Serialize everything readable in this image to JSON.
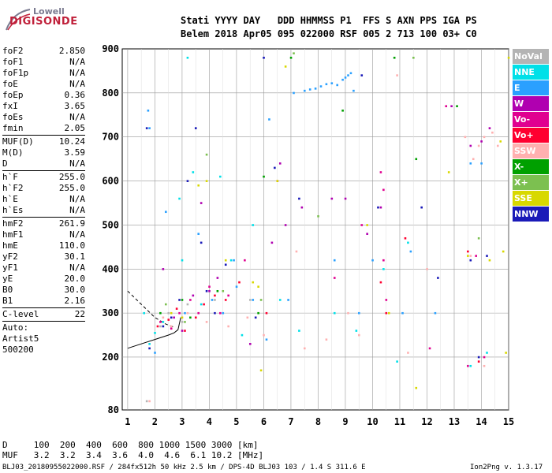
{
  "logo": {
    "line1": "Lowell",
    "line2": "DIGISONDE"
  },
  "header": {
    "row1": "Stati YYYY DAY   DDD HHMMSS P1  FFS S AXN PPS IGA PS",
    "row2": "Belem 2018 Apr05 095 022000 RSF 005 2 713 100 03+ C0"
  },
  "params": [
    {
      "k": "foF2",
      "v": "2.850"
    },
    {
      "k": "foF1",
      "v": "N/A"
    },
    {
      "k": "foF1p",
      "v": "N/A"
    },
    {
      "k": "foE",
      "v": "N/A"
    },
    {
      "k": "foEp",
      "v": "0.36"
    },
    {
      "k": "fxI",
      "v": "3.65"
    },
    {
      "k": "foEs",
      "v": "N/A"
    },
    {
      "k": "fmin",
      "v": "2.05"
    },
    {
      "sep": true
    },
    {
      "k": "MUF(D)",
      "v": "10.24"
    },
    {
      "k": "M(D)",
      "v": "3.59"
    },
    {
      "k": "D",
      "v": "N/A"
    },
    {
      "sep": true
    },
    {
      "k": "h`F",
      "v": "255.0"
    },
    {
      "k": "h`F2",
      "v": "255.0"
    },
    {
      "k": "h`E",
      "v": "N/A"
    },
    {
      "k": "h`Es",
      "v": "N/A"
    },
    {
      "sep": true
    },
    {
      "k": "hmF2",
      "v": "261.9"
    },
    {
      "k": "hmF1",
      "v": "N/A"
    },
    {
      "k": "hmE",
      "v": "110.0"
    },
    {
      "k": "yF2",
      "v": "30.1"
    },
    {
      "k": "yF1",
      "v": "N/A"
    },
    {
      "k": "yE",
      "v": "20.0"
    },
    {
      "k": "B0",
      "v": "30.0"
    },
    {
      "k": "B1",
      "v": "2.16"
    },
    {
      "sep": true
    },
    {
      "k": "C-level",
      "v": "22"
    },
    {
      "sep": true
    },
    {
      "k": "Auto:",
      "v": ""
    },
    {
      "k": "Artist5",
      "v": ""
    },
    {
      "k": "500200",
      "v": ""
    }
  ],
  "legend": [
    {
      "label": "NoVal",
      "color": "#b4b4b4"
    },
    {
      "label": "NNE",
      "color": "#00e0e8"
    },
    {
      "label": "E",
      "color": "#2aa0ff"
    },
    {
      "label": "W",
      "color": "#b000b0"
    },
    {
      "label": "Vo-",
      "color": "#e00090"
    },
    {
      "label": "Vo+",
      "color": "#ff0030"
    },
    {
      "label": "SSW",
      "color": "#ffb0b0"
    },
    {
      "label": "X-",
      "color": "#00a000"
    },
    {
      "label": "X+",
      "color": "#7cc050"
    },
    {
      "label": "SSE",
      "color": "#d8d800"
    },
    {
      "label": "NNW",
      "color": "#1a1ab8"
    }
  ],
  "footer": {
    "row1": "D     100  200  400  600  800 1000 1500 3000 [km]",
    "row2": "MUF   3.2  3.2  3.4  3.6  4.0  4.6  6.1 10.2 [MHz]",
    "row3": "BLJ03_20180955022000.RSF / 284fx512h 50 kHz 2.5 km / DPS-4D BLJ03 103 / 1.4 S 311.6 E",
    "row4": "Ion2Png v. 1.3.17"
  },
  "chart_data": {
    "type": "scatter",
    "xlabel": "",
    "ylabel": "",
    "xlim": [
      0.8,
      15
    ],
    "ylim": [
      80,
      900
    ],
    "xticks": [
      1,
      2,
      3,
      4,
      5,
      6,
      7,
      8,
      9,
      10,
      11,
      12,
      13,
      14,
      15
    ],
    "yticks": [
      80,
      200,
      300,
      400,
      500,
      600,
      700,
      800,
      900
    ],
    "grid": true,
    "series": [
      {
        "name": "NoVal",
        "color": "#b4b4b4",
        "points": [
          [
            2.2,
            270
          ],
          [
            2.5,
            300
          ],
          [
            3.0,
            280
          ],
          [
            3.2,
            320
          ],
          [
            4.2,
            330
          ],
          [
            1.7,
            100
          ],
          [
            5.5,
            330
          ]
        ]
      },
      {
        "name": "NNE",
        "color": "#00e0e8",
        "points": [
          [
            1.6,
            300
          ],
          [
            1.8,
            230
          ],
          [
            2.0,
            255
          ],
          [
            2.3,
            280
          ],
          [
            2.9,
            560
          ],
          [
            3.0,
            420
          ],
          [
            3.2,
            880
          ],
          [
            3.4,
            620
          ],
          [
            3.7,
            320
          ],
          [
            4.4,
            610
          ],
          [
            4.8,
            420
          ],
          [
            5.2,
            250
          ],
          [
            5.6,
            500
          ],
          [
            6.6,
            330
          ],
          [
            7.3,
            260
          ],
          [
            8.6,
            300
          ],
          [
            9.4,
            260
          ],
          [
            10.4,
            400
          ],
          [
            10.9,
            190
          ],
          [
            11.3,
            460
          ],
          [
            13.6,
            180
          ],
          [
            14.2,
            210
          ]
        ]
      },
      {
        "name": "E",
        "color": "#2aa0ff",
        "points": [
          [
            1.75,
            760
          ],
          [
            1.8,
            720
          ],
          [
            2.0,
            210
          ],
          [
            2.4,
            530
          ],
          [
            3.1,
            300
          ],
          [
            3.6,
            480
          ],
          [
            4.1,
            330
          ],
          [
            4.5,
            300
          ],
          [
            4.9,
            420
          ],
          [
            5.0,
            360
          ],
          [
            5.6,
            330
          ],
          [
            6.1,
            240
          ],
          [
            6.2,
            740
          ],
          [
            6.9,
            330
          ],
          [
            7.1,
            800
          ],
          [
            7.5,
            805
          ],
          [
            7.7,
            808
          ],
          [
            7.9,
            810
          ],
          [
            8.1,
            815
          ],
          [
            8.3,
            820
          ],
          [
            8.5,
            822
          ],
          [
            8.7,
            818
          ],
          [
            8.9,
            830
          ],
          [
            9.0,
            835
          ],
          [
            9.1,
            840
          ],
          [
            9.2,
            845
          ],
          [
            9.3,
            805
          ],
          [
            8.6,
            420
          ],
          [
            9.5,
            300
          ],
          [
            10.0,
            420
          ],
          [
            11.1,
            300
          ],
          [
            11.4,
            440
          ],
          [
            12.3,
            300
          ],
          [
            13.6,
            640
          ],
          [
            14.0,
            640
          ]
        ]
      },
      {
        "name": "W",
        "color": "#b000b0",
        "points": [
          [
            2.3,
            400
          ],
          [
            2.7,
            290
          ],
          [
            3.0,
            260
          ],
          [
            3.4,
            340
          ],
          [
            3.7,
            550
          ],
          [
            4.0,
            350
          ],
          [
            4.3,
            380
          ],
          [
            5.5,
            230
          ],
          [
            6.3,
            460
          ],
          [
            6.6,
            640
          ],
          [
            6.8,
            500
          ],
          [
            7.4,
            540
          ],
          [
            8.5,
            560
          ],
          [
            9.0,
            560
          ],
          [
            9.8,
            480
          ],
          [
            10.3,
            540
          ],
          [
            12.9,
            770
          ],
          [
            13.6,
            680
          ],
          [
            14.0,
            690
          ],
          [
            14.3,
            720
          ]
        ]
      },
      {
        "name": "Vo-",
        "color": "#e00090",
        "points": [
          [
            2.2,
            280
          ],
          [
            2.6,
            265
          ],
          [
            2.9,
            300
          ],
          [
            3.3,
            330
          ],
          [
            3.6,
            300
          ],
          [
            4.0,
            360
          ],
          [
            4.4,
            300
          ],
          [
            4.7,
            340
          ],
          [
            5.3,
            420
          ],
          [
            6.5,
            600
          ],
          [
            8.6,
            380
          ],
          [
            9.6,
            500
          ],
          [
            10.3,
            620
          ],
          [
            10.4,
            580
          ],
          [
            10.4,
            420
          ],
          [
            10.5,
            330
          ],
          [
            12.1,
            220
          ],
          [
            12.7,
            770
          ],
          [
            13.5,
            180
          ],
          [
            13.8,
            430
          ],
          [
            14.1,
            200
          ]
        ]
      },
      {
        "name": "Vo+",
        "color": "#ff0030",
        "points": [
          [
            2.1,
            270
          ],
          [
            2.5,
            285
          ],
          [
            2.8,
            310
          ],
          [
            3.1,
            260
          ],
          [
            3.5,
            290
          ],
          [
            3.8,
            320
          ],
          [
            4.2,
            340
          ],
          [
            4.6,
            330
          ],
          [
            5.1,
            370
          ],
          [
            6.1,
            300
          ],
          [
            10.3,
            370
          ],
          [
            10.5,
            300
          ],
          [
            11.2,
            470
          ],
          [
            13.5,
            440
          ],
          [
            13.9,
            190
          ]
        ]
      },
      {
        "name": "SSW",
        "color": "#ffb0b0",
        "points": [
          [
            1.8,
            100
          ],
          [
            2.3,
            290
          ],
          [
            2.6,
            270
          ],
          [
            3.2,
            300
          ],
          [
            3.9,
            280
          ],
          [
            4.7,
            270
          ],
          [
            5.4,
            290
          ],
          [
            6.0,
            250
          ],
          [
            7.2,
            440
          ],
          [
            7.5,
            220
          ],
          [
            8.3,
            240
          ],
          [
            9.1,
            300
          ],
          [
            9.5,
            250
          ],
          [
            10.9,
            840
          ],
          [
            11.3,
            210
          ],
          [
            12.0,
            400
          ],
          [
            13.4,
            700
          ],
          [
            13.7,
            650
          ],
          [
            13.9,
            680
          ],
          [
            14.1,
            700
          ],
          [
            14.4,
            710
          ],
          [
            14.6,
            680
          ],
          [
            13.6,
            430
          ],
          [
            14.1,
            180
          ]
        ]
      },
      {
        "name": "X-",
        "color": "#00a000",
        "points": [
          [
            2.2,
            300
          ],
          [
            3.0,
            330
          ],
          [
            3.3,
            290
          ],
          [
            4.3,
            350
          ],
          [
            5.8,
            300
          ],
          [
            6.0,
            610
          ],
          [
            7.0,
            880
          ],
          [
            8.9,
            760
          ],
          [
            10.8,
            880
          ],
          [
            11.6,
            650
          ],
          [
            13.1,
            770
          ]
        ]
      },
      {
        "name": "X+",
        "color": "#7cc050",
        "points": [
          [
            2.4,
            320
          ],
          [
            3.1,
            280
          ],
          [
            3.9,
            660
          ],
          [
            4.5,
            350
          ],
          [
            5.9,
            330
          ],
          [
            7.1,
            890
          ],
          [
            8.0,
            520
          ],
          [
            11.5,
            880
          ],
          [
            13.9,
            470
          ]
        ]
      },
      {
        "name": "SSE",
        "color": "#d8d800",
        "points": [
          [
            2.6,
            300
          ],
          [
            3.0,
            290
          ],
          [
            3.6,
            590
          ],
          [
            3.9,
            600
          ],
          [
            4.6,
            420
          ],
          [
            5.6,
            370
          ],
          [
            5.8,
            360
          ],
          [
            5.9,
            170
          ],
          [
            6.5,
            600
          ],
          [
            6.8,
            860
          ],
          [
            9.8,
            500
          ],
          [
            10.6,
            300
          ],
          [
            11.6,
            130
          ],
          [
            12.8,
            620
          ],
          [
            13.5,
            430
          ],
          [
            14.3,
            420
          ],
          [
            14.7,
            690
          ],
          [
            14.8,
            440
          ],
          [
            14.9,
            210
          ],
          [
            15.0,
            880
          ]
        ]
      },
      {
        "name": "NNW",
        "color": "#1a1ab8",
        "points": [
          [
            1.7,
            720
          ],
          [
            1.8,
            220
          ],
          [
            2.3,
            270
          ],
          [
            2.6,
            290
          ],
          [
            2.9,
            330
          ],
          [
            3.2,
            600
          ],
          [
            3.5,
            720
          ],
          [
            3.7,
            460
          ],
          [
            3.9,
            350
          ],
          [
            4.2,
            300
          ],
          [
            4.6,
            410
          ],
          [
            5.7,
            290
          ],
          [
            6.0,
            880
          ],
          [
            6.4,
            630
          ],
          [
            7.3,
            560
          ],
          [
            9.6,
            840
          ],
          [
            10.2,
            540
          ],
          [
            11.8,
            540
          ],
          [
            12.4,
            380
          ],
          [
            13.6,
            420
          ],
          [
            13.9,
            200
          ],
          [
            14.2,
            430
          ]
        ]
      }
    ],
    "curves": [
      {
        "name": "h'F trace",
        "style": "solid",
        "points": [
          [
            1.0,
            220
          ],
          [
            1.5,
            230
          ],
          [
            2.0,
            240
          ],
          [
            2.5,
            250
          ],
          [
            2.7,
            255
          ],
          [
            2.85,
            262
          ],
          [
            2.95,
            290
          ]
        ]
      },
      {
        "name": "profile",
        "style": "dashed",
        "points": [
          [
            1.0,
            350
          ],
          [
            1.5,
            320
          ],
          [
            2.0,
            290
          ],
          [
            2.4,
            275
          ],
          [
            2.7,
            268
          ]
        ]
      }
    ]
  }
}
